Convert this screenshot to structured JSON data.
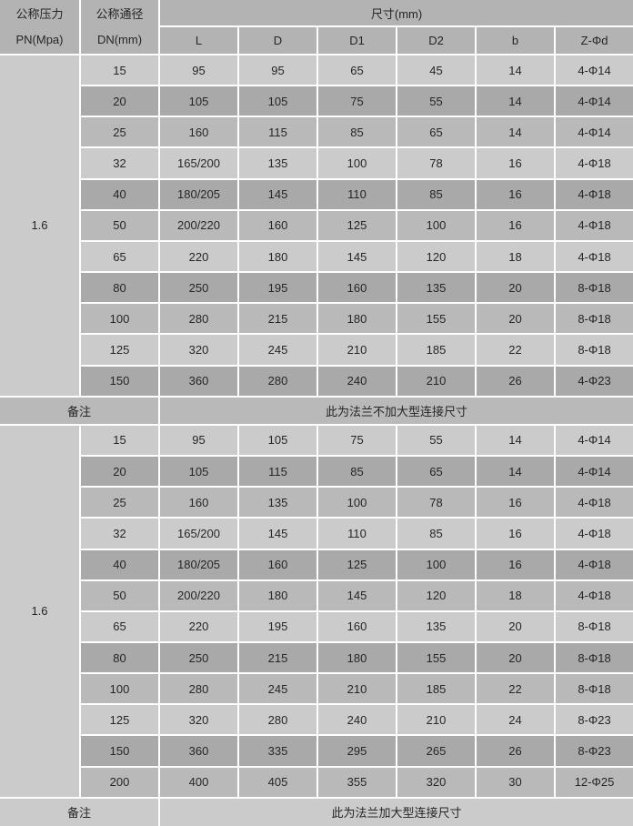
{
  "colors": {
    "header_bg": "#b3b3b3",
    "row_light": "#cbcbcb",
    "row_dark": "#a9a9a9",
    "row_medium": "#b9b9b9",
    "grid": "#ffffff",
    "text": "#262626"
  },
  "header": {
    "pressure_title": "公称压力",
    "pressure_unit": "PN(Mpa)",
    "diameter_title": "公称通径",
    "diameter_unit": "DN(mm)",
    "size_group": "尺寸(mm)",
    "size_columns": [
      "L",
      "D",
      "D1",
      "D2",
      "b",
      "Z-Φd"
    ]
  },
  "sections": [
    {
      "pn": "1.6",
      "rows": [
        [
          "15",
          "95",
          "95",
          "65",
          "45",
          "14",
          "4-Φ14"
        ],
        [
          "20",
          "105",
          "105",
          "75",
          "55",
          "14",
          "4-Φ14"
        ],
        [
          "25",
          "160",
          "115",
          "85",
          "65",
          "14",
          "4-Φ14"
        ],
        [
          "32",
          "165/200",
          "135",
          "100",
          "78",
          "16",
          "4-Φ18"
        ],
        [
          "40",
          "180/205",
          "145",
          "110",
          "85",
          "16",
          "4-Φ18"
        ],
        [
          "50",
          "200/220",
          "160",
          "125",
          "100",
          "16",
          "4-Φ18"
        ],
        [
          "65",
          "220",
          "180",
          "145",
          "120",
          "18",
          "4-Φ18"
        ],
        [
          "80",
          "250",
          "195",
          "160",
          "135",
          "20",
          "8-Φ18"
        ],
        [
          "100",
          "280",
          "215",
          "180",
          "155",
          "20",
          "8-Φ18"
        ],
        [
          "125",
          "320",
          "245",
          "210",
          "185",
          "22",
          "8-Φ18"
        ],
        [
          "150",
          "360",
          "280",
          "240",
          "210",
          "26",
          "4-Φ23"
        ]
      ],
      "note_label": "备注",
      "note_text": "此为法兰不加大型连接尺寸"
    },
    {
      "pn": "1.6",
      "rows": [
        [
          "15",
          "95",
          "105",
          "75",
          "55",
          "14",
          "4-Φ14"
        ],
        [
          "20",
          "105",
          "115",
          "85",
          "65",
          "14",
          "4-Φ14"
        ],
        [
          "25",
          "160",
          "135",
          "100",
          "78",
          "16",
          "4-Φ18"
        ],
        [
          "32",
          "165/200",
          "145",
          "110",
          "85",
          "16",
          "4-Φ18"
        ],
        [
          "40",
          "180/205",
          "160",
          "125",
          "100",
          "16",
          "4-Φ18"
        ],
        [
          "50",
          "200/220",
          "180",
          "145",
          "120",
          "18",
          "4-Φ18"
        ],
        [
          "65",
          "220",
          "195",
          "160",
          "135",
          "20",
          "8-Φ18"
        ],
        [
          "80",
          "250",
          "215",
          "180",
          "155",
          "20",
          "8-Φ18"
        ],
        [
          "100",
          "280",
          "245",
          "210",
          "185",
          "22",
          "8-Φ18"
        ],
        [
          "125",
          "320",
          "280",
          "240",
          "210",
          "24",
          "8-Φ23"
        ],
        [
          "150",
          "360",
          "335",
          "295",
          "265",
          "26",
          "8-Φ23"
        ],
        [
          "200",
          "400",
          "405",
          "355",
          "320",
          "30",
          "12-Φ25"
        ]
      ],
      "note_label": "备注",
      "note_text": "此为法兰加大型连接尺寸"
    }
  ],
  "chart_data": {
    "type": "table",
    "title": "尺寸(mm)",
    "columns": [
      "PN(Mpa)",
      "DN(mm)",
      "L",
      "D",
      "D1",
      "D2",
      "b",
      "Z-Φd"
    ],
    "notes": [
      "此为法兰不加大型连接尺寸",
      "此为法兰加大型连接尺寸"
    ]
  }
}
